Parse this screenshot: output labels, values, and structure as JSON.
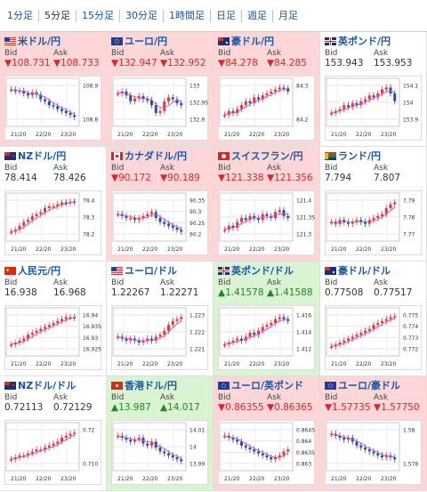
{
  "tabs": [
    "1分足",
    "5分足",
    "15分足",
    "30分足",
    "1時間足",
    "日足",
    "週足",
    "月足"
  ],
  "active_tab": 1,
  "labels": {
    "bid": "Bid",
    "ask": "Ask"
  },
  "colors": {
    "down_bg": "#fdd7d7",
    "up_bg": "#d9f3d3",
    "down_text": "#e0242a",
    "up_text": "#1c8c22",
    "link": "#1a56a8"
  },
  "pairs": [
    {
      "name": "米ドル/円",
      "flag": "us",
      "dir": "down",
      "bid": "▼108.731",
      "ask": "▼108.733",
      "chart_data": {
        "type": "candlestick",
        "x_ticks": [
          "21/20",
          "22/20",
          "23/20"
        ],
        "y_ticks": [
          "108.9",
          "108.8"
        ],
        "trend": [
          0.85,
          0.8,
          0.82,
          0.75,
          0.7,
          0.78,
          0.72,
          0.6,
          0.55,
          0.45,
          0.42,
          0.35,
          0.3,
          0.25,
          0.2,
          0.15
        ]
      }
    },
    {
      "name": "ユーロ/円",
      "flag": "eu",
      "dir": "down",
      "bid": "▼132.947",
      "ask": "▼132.952",
      "chart_data": {
        "type": "candlestick",
        "x_ticks": [
          "21/20",
          "22/20",
          "23/20"
        ],
        "y_ticks": [
          "133",
          "132.95",
          "132.9"
        ],
        "trend": [
          0.75,
          0.8,
          0.7,
          0.55,
          0.62,
          0.68,
          0.6,
          0.58,
          0.45,
          0.25,
          0.3,
          0.55,
          0.65,
          0.6,
          0.5,
          0.45
        ]
      }
    },
    {
      "name": "豪ドル/円",
      "flag": "au",
      "dir": "down",
      "bid": "▼84.278",
      "ask": "▼84.285",
      "chart_data": {
        "type": "candlestick",
        "x_ticks": [
          "21/20",
          "22/20",
          "23/20"
        ],
        "y_ticks": [
          "84.3",
          "84.2"
        ],
        "trend": [
          0.2,
          0.3,
          0.25,
          0.35,
          0.45,
          0.55,
          0.5,
          0.65,
          0.6,
          0.7,
          0.75,
          0.8,
          0.85,
          0.9,
          0.88,
          0.8
        ]
      }
    },
    {
      "name": "英ポンド/円",
      "flag": "uk",
      "dir": "flat",
      "bid": "153.943",
      "ask": "153.953",
      "chart_data": {
        "type": "candlestick",
        "x_ticks": [
          "21/20",
          "22/20",
          "23/20"
        ],
        "y_ticks": [
          "154.1",
          "154",
          "153.9"
        ],
        "trend": [
          0.25,
          0.3,
          0.35,
          0.45,
          0.4,
          0.5,
          0.45,
          0.55,
          0.6,
          0.7,
          0.65,
          0.75,
          0.85,
          0.9,
          0.75,
          0.55
        ]
      }
    },
    {
      "name": "NZドル/円",
      "flag": "nz",
      "dir": "flat",
      "bid": "78.414",
      "ask": "78.426",
      "chart_data": {
        "type": "candlestick",
        "x_ticks": [
          "21/20",
          "22/20",
          "23/20"
        ],
        "y_ticks": [
          "78.4",
          "78.3",
          "78.2"
        ],
        "trend": [
          0.15,
          0.2,
          0.3,
          0.4,
          0.45,
          0.55,
          0.6,
          0.65,
          0.75,
          0.8,
          0.8,
          0.85,
          0.9,
          0.88,
          0.92,
          0.9
        ]
      }
    },
    {
      "name": "カナダドル/円",
      "flag": "ca",
      "dir": "down",
      "bid": "▼90.172",
      "ask": "▼90.189",
      "chart_data": {
        "type": "candlestick",
        "x_ticks": [
          "21/20",
          "22/20",
          "23/20"
        ],
        "y_ticks": [
          "90.35",
          "90.3",
          "90.25",
          "90.2"
        ],
        "trend": [
          0.6,
          0.55,
          0.5,
          0.5,
          0.45,
          0.5,
          0.55,
          0.6,
          0.65,
          0.5,
          0.4,
          0.35,
          0.3,
          0.25,
          0.2,
          0.15
        ]
      }
    },
    {
      "name": "スイスフラン/円",
      "flag": "ch",
      "dir": "down",
      "bid": "▼121.338",
      "ask": "▼121.356",
      "chart_data": {
        "type": "candlestick",
        "x_ticks": [
          "21/20",
          "22/20",
          "23/20"
        ],
        "y_ticks": [
          "121.4",
          "121.35",
          "121.3"
        ],
        "trend": [
          0.2,
          0.3,
          0.25,
          0.4,
          0.5,
          0.45,
          0.55,
          0.5,
          0.45,
          0.6,
          0.55,
          0.5,
          0.65,
          0.7,
          0.55,
          0.5
        ]
      }
    },
    {
      "name": "ランド/円",
      "flag": "za",
      "dir": "flat",
      "bid": "7.794",
      "ask": "7.807",
      "chart_data": {
        "type": "candlestick",
        "x_ticks": [
          "21/20",
          "22/20",
          "23/20"
        ],
        "y_ticks": [
          "7.79",
          "7.78",
          "7.77"
        ],
        "trend": [
          0.4,
          0.35,
          0.45,
          0.4,
          0.35,
          0.4,
          0.45,
          0.4,
          0.35,
          0.45,
          0.5,
          0.55,
          0.6,
          0.75,
          0.85,
          0.9
        ]
      }
    },
    {
      "name": "人民元/円",
      "flag": "cn",
      "dir": "flat",
      "bid": "16.938",
      "ask": "16.968",
      "chart_data": {
        "type": "candlestick",
        "x_ticks": [
          "21/20",
          "22/20",
          "23/20"
        ],
        "y_ticks": [
          "16.94",
          "16.935",
          "16.93",
          "16.925"
        ],
        "trend": [
          0.2,
          0.25,
          0.3,
          0.35,
          0.45,
          0.5,
          0.55,
          0.6,
          0.65,
          0.7,
          0.75,
          0.8,
          0.85,
          0.9,
          0.9,
          0.88
        ]
      }
    },
    {
      "name": "ユーロ/ドル",
      "flag": "us",
      "dir": "flat",
      "bid": "1.22267",
      "ask": "1.22271",
      "chart_data": {
        "type": "candlestick",
        "x_ticks": [
          "21/20",
          "22/20",
          "23/20"
        ],
        "y_ticks": [
          "1.223",
          "1.222",
          "1.221"
        ],
        "trend": [
          0.4,
          0.35,
          0.3,
          0.35,
          0.3,
          0.25,
          0.3,
          0.35,
          0.3,
          0.4,
          0.45,
          0.55,
          0.7,
          0.8,
          0.85,
          0.9
        ]
      }
    },
    {
      "name": "英ポンド/ドル",
      "flag": "uk",
      "dir": "up",
      "bid": "▲1.41578",
      "ask": "▲1.41588",
      "chart_data": {
        "type": "candlestick",
        "x_ticks": [
          "21/20",
          "22/20",
          "23/20"
        ],
        "y_ticks": [
          "1.416",
          "1.414",
          "1.412"
        ],
        "trend": [
          0.2,
          0.25,
          0.3,
          0.35,
          0.3,
          0.4,
          0.5,
          0.45,
          0.55,
          0.65,
          0.7,
          0.75,
          0.85,
          0.9,
          0.85,
          0.8
        ]
      }
    },
    {
      "name": "豪ドル/ドル",
      "flag": "au",
      "dir": "flat",
      "bid": "0.77508",
      "ask": "0.77517",
      "chart_data": {
        "type": "candlestick",
        "x_ticks": [
          "21/20",
          "22/20",
          "23/20"
        ],
        "y_ticks": [
          "0.775",
          "0.774",
          "0.773",
          "0.772"
        ],
        "trend": [
          0.15,
          0.2,
          0.25,
          0.3,
          0.35,
          0.4,
          0.45,
          0.5,
          0.55,
          0.6,
          0.7,
          0.75,
          0.8,
          0.85,
          0.9,
          0.92
        ]
      }
    },
    {
      "name": "NZドル/ドル",
      "flag": "nz",
      "dir": "flat",
      "bid": "0.72113",
      "ask": "0.72129",
      "chart_data": {
        "type": "candlestick",
        "x_ticks": [
          "21/20",
          "22/20",
          "23/20"
        ],
        "y_ticks": [
          "0.72",
          "0.710"
        ],
        "trend": [
          0.2,
          0.25,
          0.3,
          0.3,
          0.35,
          0.4,
          0.45,
          0.45,
          0.5,
          0.55,
          0.6,
          0.65,
          0.75,
          0.8,
          0.85,
          0.88
        ]
      }
    },
    {
      "name": "香港ドル/円",
      "flag": "hk",
      "dir": "up",
      "bid": "▲13.987",
      "ask": "▲14.017",
      "chart_data": {
        "type": "candlestick",
        "x_ticks": [
          "21/20",
          "22/20",
          "23/20"
        ],
        "y_ticks": [
          "14.01",
          "14",
          "13.99"
        ],
        "trend": [
          0.8,
          0.75,
          0.7,
          0.65,
          0.7,
          0.75,
          0.6,
          0.55,
          0.65,
          0.5,
          0.4,
          0.35,
          0.3,
          0.25,
          0.2,
          0.15
        ]
      }
    },
    {
      "name": "ユーロ/英ポンド",
      "flag": "eu",
      "dir": "down",
      "bid": "▼0.86355",
      "ask": "▼0.86365",
      "chart_data": {
        "type": "candlestick",
        "x_ticks": [
          "21/20",
          "22/20",
          "23/20"
        ],
        "y_ticks": [
          "0.8645",
          "0.864",
          "0.8635",
          "0.863"
        ],
        "trend": [
          0.8,
          0.75,
          0.7,
          0.65,
          0.55,
          0.5,
          0.45,
          0.4,
          0.35,
          0.3,
          0.25,
          0.2,
          0.25,
          0.3,
          0.4,
          0.45
        ]
      }
    },
    {
      "name": "ユーロ/豪ドル",
      "flag": "eu",
      "dir": "down",
      "bid": "▼1.57735",
      "ask": "▼1.57750",
      "chart_data": {
        "type": "candlestick",
        "x_ticks": [
          "21/20",
          "22/20",
          "23/20"
        ],
        "y_ticks": [
          "1.58",
          "1.578"
        ],
        "trend": [
          0.85,
          0.8,
          0.75,
          0.7,
          0.75,
          0.65,
          0.55,
          0.5,
          0.45,
          0.4,
          0.35,
          0.3,
          0.25,
          0.3,
          0.25,
          0.2
        ]
      }
    }
  ]
}
